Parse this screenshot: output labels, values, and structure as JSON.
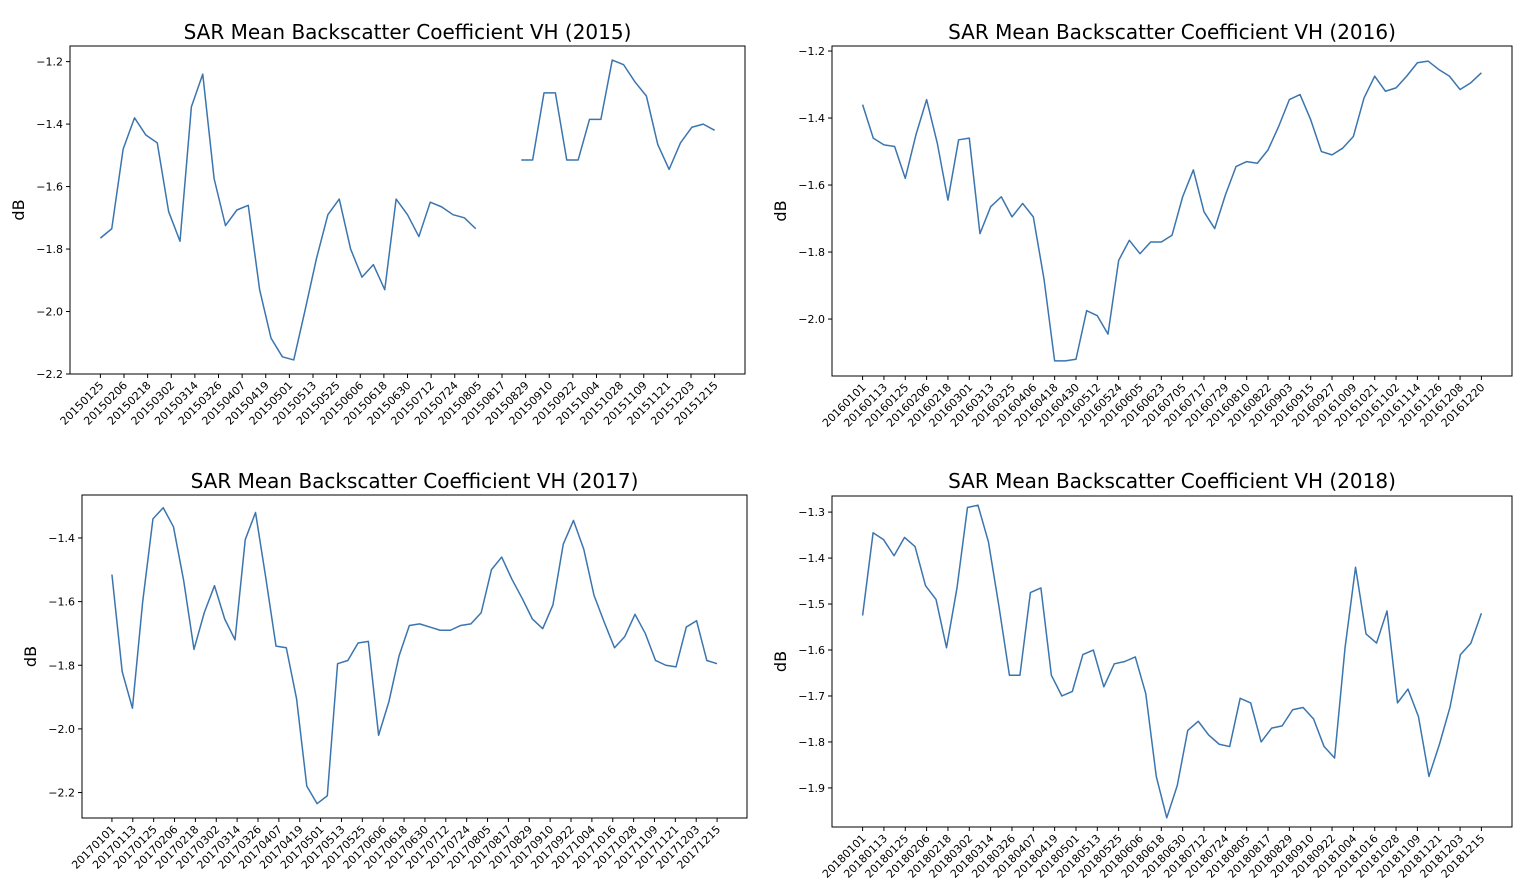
{
  "chart_data": [
    {
      "type": "line",
      "title": "SAR Mean Backscatter Coefficient VH (2015)",
      "ylabel": "dB",
      "ylim": [
        -2.2,
        -1.15
      ],
      "yticks": [
        -2.2,
        -2.0,
        -1.8,
        -1.6,
        -1.4,
        -1.2
      ],
      "ytick_labels": [
        "−2.2",
        "−2.0",
        "−1.8",
        "−1.6",
        "−1.4",
        "−1.2"
      ],
      "x_tick_labels": [
        "20150125",
        "20150206",
        "20150218",
        "20150302",
        "20150314",
        "20150326",
        "20150407",
        "20150419",
        "20150501",
        "20150513",
        "20150525",
        "20150606",
        "20150618",
        "20150630",
        "20150712",
        "20150724",
        "20150805",
        "20150817",
        "20150829",
        "20150910",
        "20150922",
        "20151004",
        "20151028",
        "20151109",
        "20151121",
        "20151203",
        "20151215"
      ],
      "series": [
        {
          "values": [
            -1.765,
            -1.735,
            -1.48,
            -1.38,
            -1.435,
            -1.46,
            -1.68,
            -1.775,
            -1.345,
            -1.24,
            -1.575,
            -1.725,
            -1.675,
            -1.66,
            -1.93,
            -2.085,
            -2.145,
            -2.155,
            -1.995,
            -1.83,
            -1.69,
            -1.64,
            -1.8,
            -1.89,
            -1.85,
            -1.93,
            -1.64,
            -1.69,
            -1.76,
            -1.65,
            -1.665,
            -1.69,
            -1.7,
            -1.735,
            null,
            null,
            null,
            -1.515,
            -1.515,
            -1.3,
            -1.3,
            -1.515,
            -1.515,
            -1.385,
            -1.385,
            -1.195,
            -1.21,
            -1.265,
            -1.31,
            -1.465,
            -1.545,
            -1.46,
            -1.41,
            -1.4,
            -1.42
          ]
        }
      ]
    },
    {
      "type": "line",
      "title": "SAR Mean Backscatter Coefficient VH (2016)",
      "ylabel": "dB",
      "ylim": [
        -2.17,
        -1.185
      ],
      "yticks": [
        -2.0,
        -1.8,
        -1.6,
        -1.4,
        -1.2
      ],
      "ytick_labels": [
        "−2.0",
        "−1.8",
        "−1.6",
        "−1.4",
        "−1.2"
      ],
      "x_tick_labels": [
        "20160101",
        "20160113",
        "20160125",
        "20160206",
        "20160218",
        "20160301",
        "20160313",
        "20160325",
        "20160406",
        "20160418",
        "20160430",
        "20160512",
        "20160524",
        "20160605",
        "20160623",
        "20160705",
        "20160717",
        "20160729",
        "20160810",
        "20160822",
        "20160903",
        "20160915",
        "20160927",
        "20161009",
        "20161021",
        "20161102",
        "20161114",
        "20161126",
        "20161208",
        "20161220"
      ],
      "series": [
        {
          "values": [
            -1.36,
            -1.46,
            -1.48,
            -1.485,
            -1.58,
            -1.45,
            -1.345,
            -1.475,
            -1.645,
            -1.465,
            -1.46,
            -1.745,
            -1.665,
            -1.635,
            -1.695,
            -1.655,
            -1.695,
            -1.88,
            -2.125,
            -2.125,
            -2.12,
            -1.975,
            -1.99,
            -2.045,
            -1.825,
            -1.765,
            -1.805,
            -1.77,
            -1.77,
            -1.75,
            -1.635,
            -1.555,
            -1.68,
            -1.73,
            -1.63,
            -1.545,
            -1.53,
            -1.535,
            -1.495,
            -1.425,
            -1.345,
            -1.33,
            -1.405,
            -1.5,
            -1.51,
            -1.49,
            -1.455,
            -1.34,
            -1.275,
            -1.32,
            -1.31,
            -1.275,
            -1.235,
            -1.23,
            -1.255,
            -1.275,
            -1.315,
            -1.295,
            -1.265
          ]
        }
      ]
    },
    {
      "type": "line",
      "title": "SAR Mean Backscatter Coefficient VH (2017)",
      "ylabel": "dB",
      "ylim": [
        -2.28,
        -1.265
      ],
      "yticks": [
        -2.2,
        -2.0,
        -1.8,
        -1.6,
        -1.4
      ],
      "ytick_labels": [
        "−2.2",
        "−2.0",
        "−1.8",
        "−1.6",
        "−1.4"
      ],
      "x_tick_labels": [
        "20170101",
        "20170113",
        "20170125",
        "20170206",
        "20170218",
        "20170302",
        "20170314",
        "20170326",
        "20170407",
        "20170419",
        "20170501",
        "20170513",
        "20170525",
        "20170606",
        "20170618",
        "20170630",
        "20170712",
        "20170724",
        "20170805",
        "20170817",
        "20170829",
        "20170910",
        "20170922",
        "20171004",
        "20171016",
        "20171028",
        "20171109",
        "20171121",
        "20171203",
        "20171215"
      ],
      "series": [
        {
          "values": [
            -1.515,
            -1.82,
            -1.935,
            -1.6,
            -1.34,
            -1.305,
            -1.365,
            -1.535,
            -1.75,
            -1.635,
            -1.55,
            -1.655,
            -1.72,
            -1.405,
            -1.32,
            -1.525,
            -1.74,
            -1.745,
            -1.905,
            -2.18,
            -2.235,
            -2.21,
            -1.795,
            -1.785,
            -1.73,
            -1.725,
            -2.02,
            -1.915,
            -1.77,
            -1.675,
            -1.67,
            -1.68,
            -1.69,
            -1.69,
            -1.675,
            -1.67,
            -1.635,
            -1.5,
            -1.46,
            -1.53,
            -1.59,
            -1.655,
            -1.685,
            -1.61,
            -1.42,
            -1.345,
            -1.435,
            -1.58,
            -1.665,
            -1.745,
            -1.71,
            -1.64,
            -1.7,
            -1.785,
            -1.8,
            -1.805,
            -1.68,
            -1.66,
            -1.785,
            -1.795
          ]
        }
      ]
    },
    {
      "type": "line",
      "title": "SAR Mean Backscatter Coefficient VH (2018)",
      "ylabel": "dB",
      "ylim": [
        -1.985,
        -1.265
      ],
      "yticks": [
        -1.9,
        -1.8,
        -1.7,
        -1.6,
        -1.5,
        -1.4,
        -1.3
      ],
      "ytick_labels": [
        "−1.9",
        "−1.8",
        "−1.7",
        "−1.6",
        "−1.5",
        "−1.4",
        "−1.3"
      ],
      "x_tick_labels": [
        "20180101",
        "20180113",
        "20180125",
        "20180206",
        "20180218",
        "20180302",
        "20180314",
        "20180326",
        "20180407",
        "20180419",
        "20180501",
        "20180513",
        "20180525",
        "20180606",
        "20180618",
        "20180630",
        "20180712",
        "20180724",
        "20180805",
        "20180817",
        "20180829",
        "20180910",
        "20180922",
        "20181004",
        "20181016",
        "20181028",
        "20181109",
        "20181121",
        "20181203",
        "20181215"
      ],
      "series": [
        {
          "values": [
            -1.525,
            -1.345,
            -1.36,
            -1.395,
            -1.355,
            -1.375,
            -1.46,
            -1.49,
            -1.595,
            -1.465,
            -1.29,
            -1.285,
            -1.365,
            -1.505,
            -1.655,
            -1.655,
            -1.475,
            -1.465,
            -1.655,
            -1.7,
            -1.69,
            -1.61,
            -1.6,
            -1.68,
            -1.63,
            -1.625,
            -1.615,
            -1.695,
            -1.875,
            -1.965,
            -1.895,
            -1.775,
            -1.755,
            -1.785,
            -1.805,
            -1.81,
            -1.705,
            -1.715,
            -1.8,
            -1.77,
            -1.765,
            -1.73,
            -1.725,
            -1.75,
            -1.81,
            -1.835,
            -1.595,
            -1.42,
            -1.565,
            -1.585,
            -1.515,
            -1.715,
            -1.685,
            -1.745,
            -1.875,
            -1.805,
            -1.725,
            -1.61,
            -1.585,
            -1.52
          ]
        }
      ]
    }
  ]
}
